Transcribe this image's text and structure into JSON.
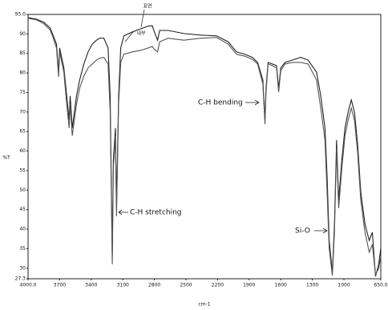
{
  "chart_data": {
    "type": "line",
    "xlabel": "cm-1",
    "ylabel": "%T",
    "annotations": [
      "표면",
      "내부",
      "C-H bending",
      "C-H stretching",
      "Si-O"
    ],
    "xlim": [
      4000,
      650
    ],
    "xticks": [
      {
        "value": 4000,
        "label": "4000.0"
      },
      3700,
      3400,
      3100,
      2800,
      2500,
      2200,
      1900,
      1600,
      1300,
      1000,
      {
        "value": 650,
        "label": "650.0"
      }
    ],
    "ylim": [
      27.3,
      95.0
    ],
    "yticks": [
      {
        "value": 95,
        "label": "95.0"
      },
      90,
      85,
      80,
      75,
      70,
      65,
      60,
      55,
      50,
      45,
      40,
      35,
      30,
      {
        "value": 27.3,
        "label": "27.3"
      }
    ],
    "series": [
      {
        "name": "표면",
        "color": "#222222",
        "x": [
          4000,
          3920,
          3850,
          3790,
          3760,
          3730,
          3710,
          3700,
          3660,
          3640,
          3610,
          3600,
          3580,
          3560,
          3540,
          3510,
          3470,
          3430,
          3390,
          3350,
          3320,
          3280,
          3240,
          3220,
          3200,
          3190,
          3170,
          3160,
          3140,
          3120,
          3090,
          3010,
          2930,
          2860,
          2820,
          2800,
          2770,
          2750,
          2670,
          2520,
          2360,
          2210,
          2100,
          2020,
          1940,
          1870,
          1820,
          1770,
          1750,
          1740,
          1720,
          1680,
          1640,
          1620,
          1600,
          1560,
          1490,
          1410,
          1340,
          1260,
          1220,
          1180,
          1160,
          1140,
          1110,
          1090,
          1070,
          1050,
          1020,
          990,
          960,
          930,
          900,
          870,
          840,
          800,
          760,
          730,
          700,
          670,
          650
        ],
        "values": [
          94.2,
          93.8,
          93.0,
          91.5,
          89.5,
          87.4,
          80.2,
          86.4,
          81.3,
          76.1,
          67.9,
          74.1,
          65.9,
          70.0,
          74.1,
          78.2,
          82.3,
          85.4,
          87.4,
          88.4,
          88.9,
          88.9,
          86.4,
          74.1,
          33.0,
          57.7,
          65.9,
          45.4,
          74.1,
          86.4,
          89.5,
          90.5,
          91.3,
          92.0,
          92.1,
          90.5,
          88.4,
          90.9,
          90.9,
          90.1,
          89.7,
          89.5,
          88.0,
          85.4,
          84.8,
          84.0,
          82.7,
          78.2,
          67.9,
          76.1,
          82.7,
          82.3,
          81.9,
          76.1,
          81.3,
          82.7,
          83.3,
          84.0,
          83.3,
          80.2,
          74.1,
          65.9,
          53.6,
          37.1,
          28.9,
          41.3,
          62.8,
          47.4,
          57.7,
          65.9,
          70.0,
          73.1,
          70.0,
          61.8,
          49.5,
          41.3,
          37.1,
          39.2,
          27.9,
          31.0,
          35.1
        ]
      },
      {
        "name": "내부",
        "color": "#555555",
        "x": [
          4000,
          3920,
          3850,
          3790,
          3760,
          3730,
          3710,
          3700,
          3660,
          3640,
          3610,
          3600,
          3580,
          3560,
          3540,
          3510,
          3470,
          3430,
          3390,
          3350,
          3320,
          3280,
          3240,
          3220,
          3200,
          3190,
          3170,
          3160,
          3140,
          3120,
          3090,
          3010,
          2930,
          2860,
          2820,
          2800,
          2770,
          2750,
          2670,
          2520,
          2360,
          2210,
          2100,
          2020,
          1940,
          1870,
          1820,
          1770,
          1750,
          1740,
          1720,
          1680,
          1640,
          1620,
          1600,
          1560,
          1490,
          1410,
          1340,
          1260,
          1220,
          1180,
          1160,
          1140,
          1110,
          1090,
          1070,
          1050,
          1020,
          990,
          960,
          930,
          900,
          870,
          840,
          800,
          760,
          730,
          700,
          670,
          650
        ],
        "values": [
          94.0,
          93.6,
          92.6,
          91.0,
          88.9,
          86.4,
          79.0,
          85.4,
          80.2,
          74.1,
          65.9,
          72.0,
          63.9,
          68.0,
          72.0,
          76.1,
          79.2,
          81.3,
          82.3,
          83.3,
          83.8,
          84.0,
          82.3,
          70.0,
          31.0,
          55.6,
          63.9,
          43.3,
          72.0,
          82.7,
          84.8,
          85.4,
          85.8,
          86.4,
          86.8,
          86.0,
          85.4,
          88.0,
          88.9,
          88.4,
          88.9,
          89.1,
          87.4,
          84.8,
          84.3,
          83.5,
          82.3,
          77.2,
          66.9,
          75.1,
          82.3,
          81.9,
          81.3,
          75.1,
          80.6,
          82.3,
          82.7,
          82.7,
          82.3,
          78.2,
          71.0,
          62.8,
          49.5,
          35.1,
          28.1,
          39.2,
          60.7,
          45.4,
          55.6,
          63.9,
          68.0,
          71.0,
          67.9,
          59.7,
          47.4,
          39.2,
          34.1,
          36.1,
          28.3,
          30.0,
          33.0
        ]
      }
    ]
  }
}
